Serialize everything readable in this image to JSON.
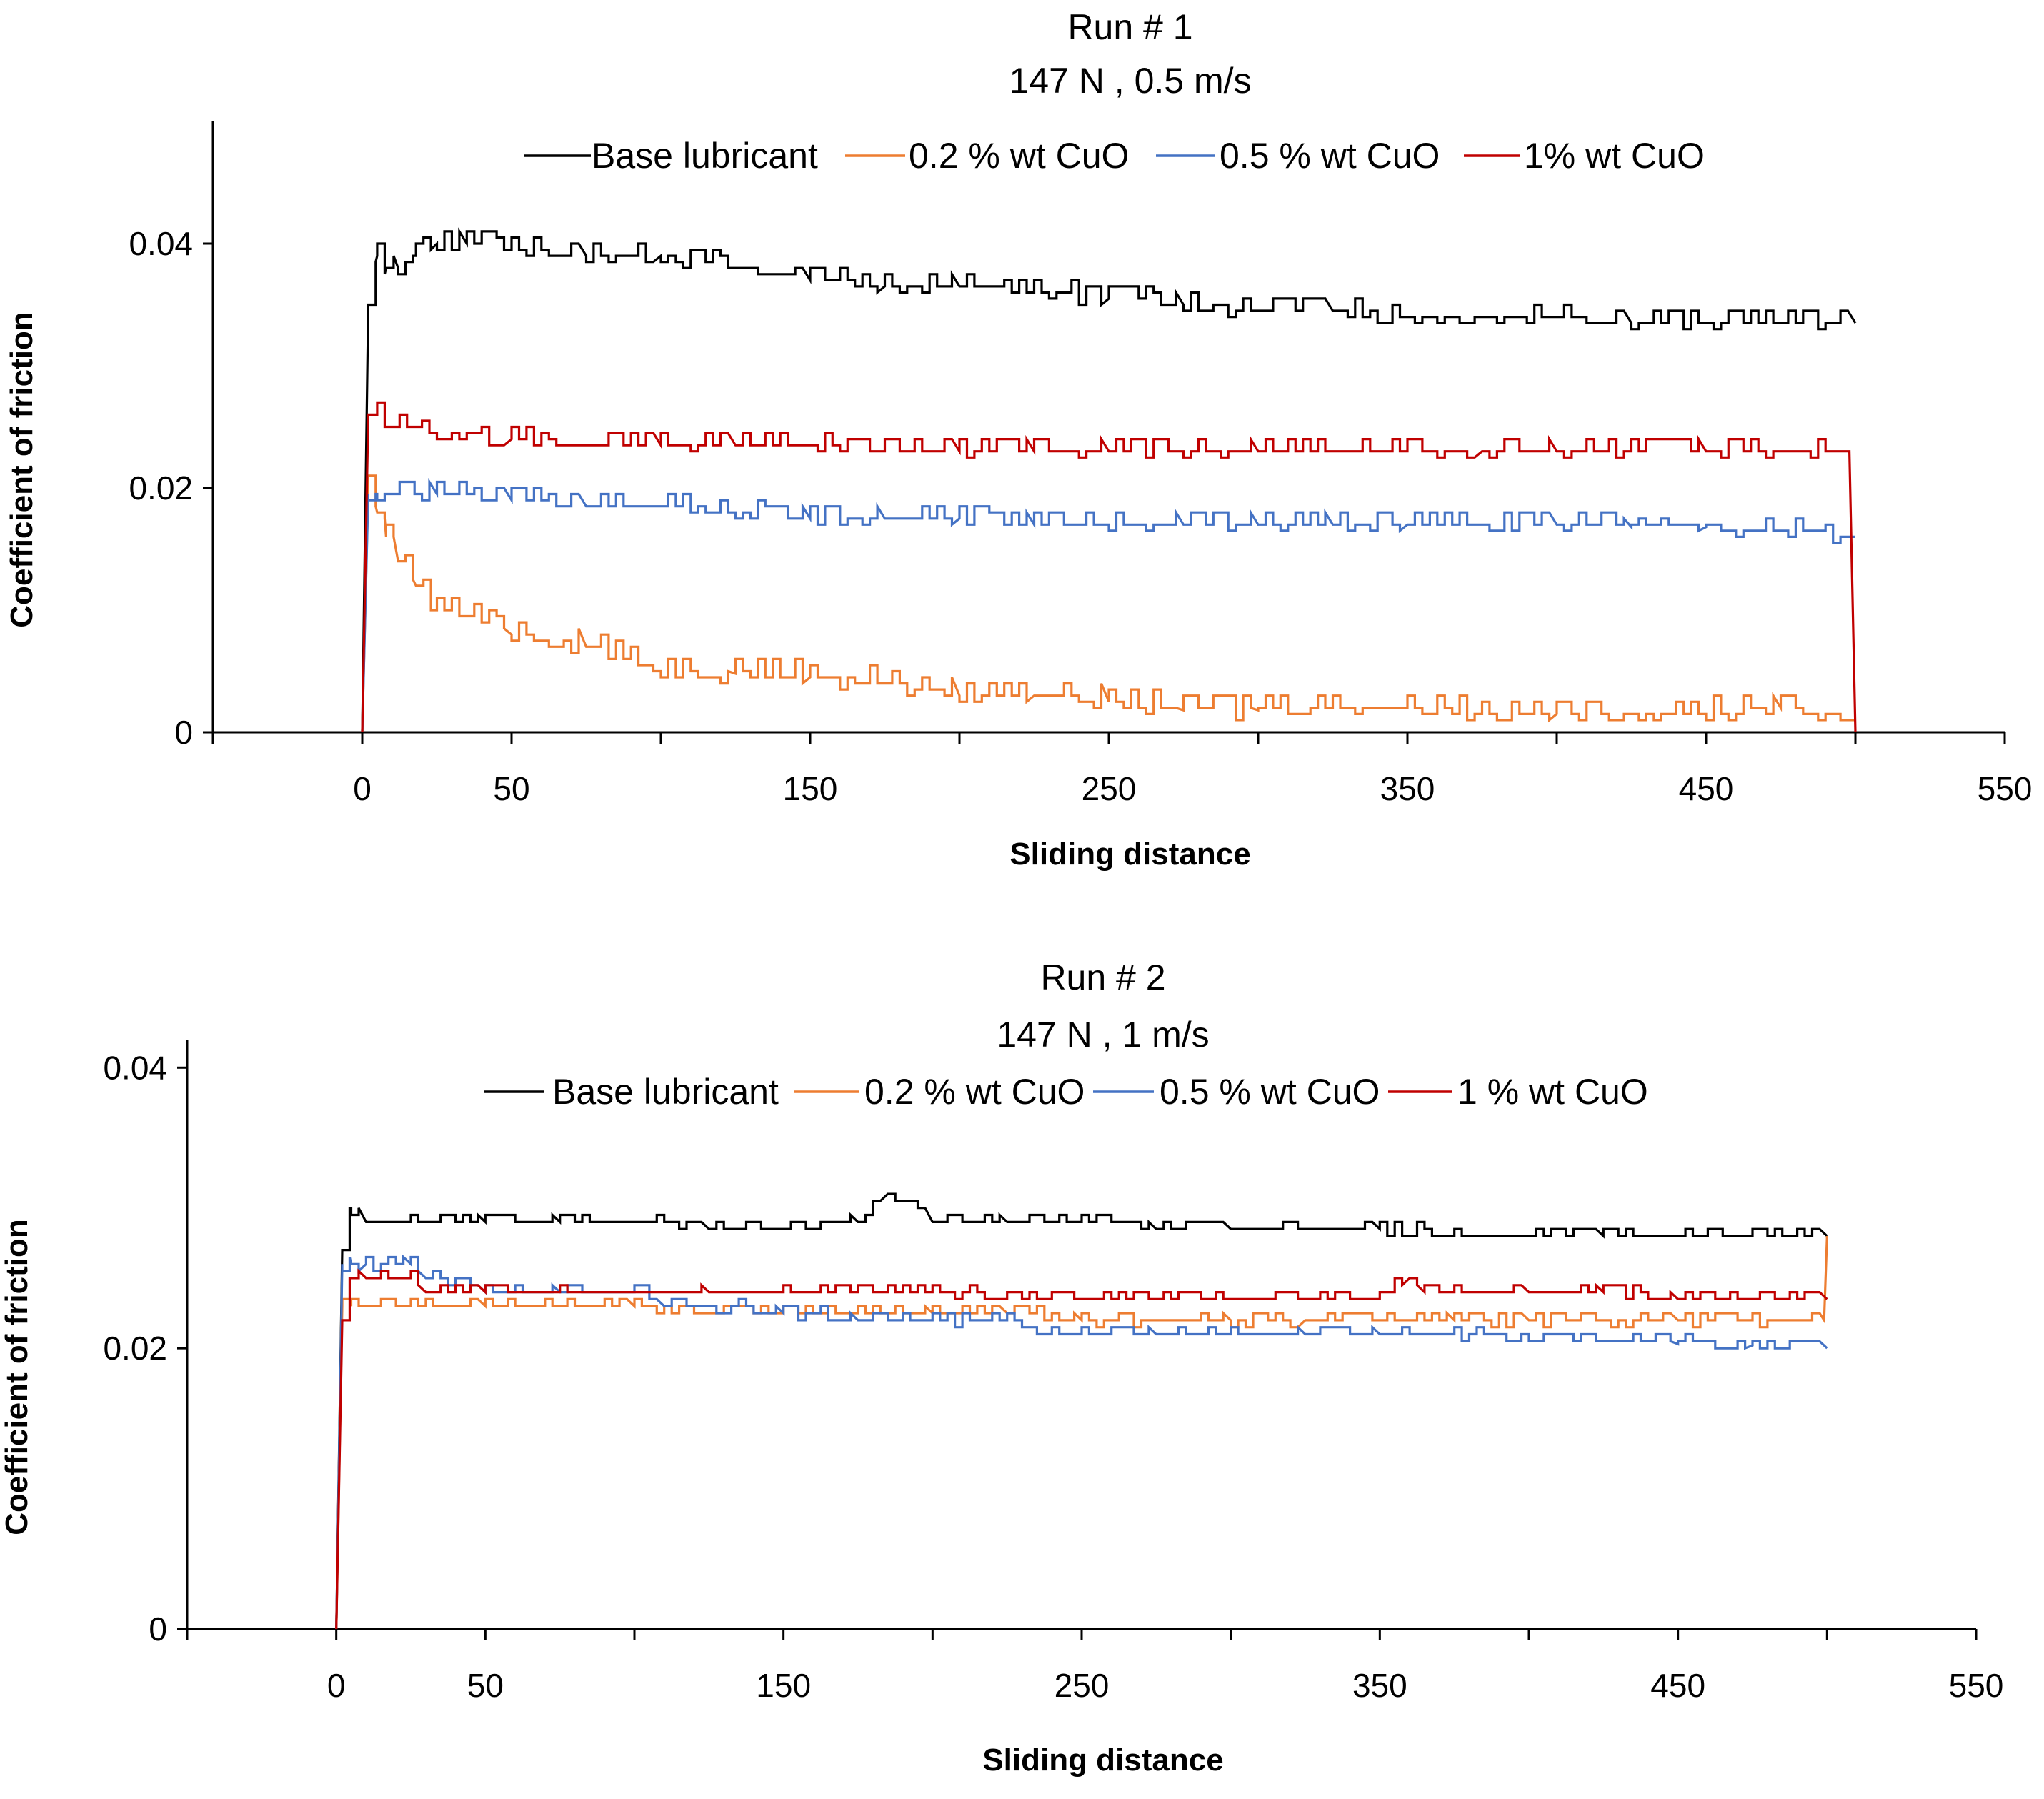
{
  "chart_data": [
    {
      "type": "line",
      "title": "Run # 1",
      "subtitle": "147 N , 0.5 m/s",
      "xlabel": "Sliding distance",
      "ylabel": "Coefficient of friction",
      "xlim": [
        -50,
        550
      ],
      "ylim": [
        0,
        0.05
      ],
      "xticks": [
        0,
        50,
        150,
        250,
        350,
        450,
        550
      ],
      "yticks": [
        0,
        0.02,
        0.04
      ],
      "ytick_labels": [
        "0",
        "0.02",
        "0.04"
      ],
      "grid": false,
      "legend_position": "top",
      "series": [
        {
          "name": "Base lubricant",
          "color": "#000000",
          "jitter": 0.001,
          "x": [
            0,
            2,
            5,
            8,
            12,
            18,
            25,
            35,
            50,
            75,
            100,
            125,
            150,
            175,
            200,
            225,
            250,
            275,
            300,
            325,
            350,
            375,
            400,
            425,
            450,
            475,
            500
          ],
          "y": [
            0,
            0.035,
            0.039,
            0.038,
            0.038,
            0.039,
            0.04,
            0.04,
            0.0395,
            0.039,
            0.039,
            0.038,
            0.037,
            0.0365,
            0.0365,
            0.036,
            0.0355,
            0.035,
            0.0345,
            0.0345,
            0.034,
            0.034,
            0.034,
            0.0335,
            0.0335,
            0.0335,
            0.0335
          ]
        },
        {
          "name": "0.2 % wt CuO",
          "color": "#ED7D31",
          "jitter": 0.0012,
          "x": [
            0,
            2,
            5,
            8,
            12,
            18,
            25,
            35,
            50,
            75,
            100,
            125,
            150,
            175,
            200,
            225,
            250,
            275,
            300,
            325,
            350,
            375,
            400,
            425,
            450,
            475,
            500
          ],
          "y": [
            0,
            0.02,
            0.018,
            0.016,
            0.014,
            0.012,
            0.01,
            0.0095,
            0.008,
            0.007,
            0.005,
            0.0048,
            0.0045,
            0.004,
            0.003,
            0.003,
            0.0025,
            0.0018,
            0.0018,
            0.002,
            0.002,
            0.0015,
            0.0015,
            0.0015,
            0.0015,
            0.002,
            0.001
          ]
        },
        {
          "name": "0.5 % wt CuO",
          "color": "#4472C4",
          "jitter": 0.0009,
          "x": [
            0,
            2,
            5,
            10,
            25,
            50,
            75,
            100,
            125,
            150,
            175,
            200,
            225,
            250,
            275,
            300,
            325,
            350,
            375,
            400,
            425,
            450,
            475,
            500
          ],
          "y": [
            0,
            0.0195,
            0.0195,
            0.0195,
            0.0195,
            0.019,
            0.0185,
            0.0185,
            0.018,
            0.0175,
            0.0175,
            0.0175,
            0.017,
            0.017,
            0.017,
            0.017,
            0.017,
            0.017,
            0.017,
            0.017,
            0.0168,
            0.0168,
            0.0165,
            0.016
          ]
        },
        {
          "name": "1% wt CuO",
          "color": "#C00000",
          "jitter": 0.0009,
          "x": [
            0,
            2,
            5,
            10,
            25,
            50,
            75,
            100,
            125,
            150,
            175,
            200,
            225,
            250,
            275,
            300,
            325,
            350,
            375,
            400,
            425,
            450,
            475,
            498,
            500
          ],
          "y": [
            0,
            0.026,
            0.026,
            0.025,
            0.0245,
            0.024,
            0.0235,
            0.0235,
            0.0235,
            0.0235,
            0.023,
            0.023,
            0.023,
            0.023,
            0.023,
            0.023,
            0.023,
            0.023,
            0.023,
            0.023,
            0.023,
            0.023,
            0.023,
            0.023,
            0
          ]
        }
      ]
    },
    {
      "type": "line",
      "title": "Run # 2",
      "subtitle": "147 N , 1 m/s",
      "xlabel": "Sliding distance",
      "ylabel": "Coefficient of friction",
      "xlim": [
        -50,
        550
      ],
      "ylim": [
        0,
        0.042
      ],
      "xticks": [
        0,
        50,
        150,
        250,
        350,
        450,
        550
      ],
      "yticks": [
        0,
        0.02,
        0.04
      ],
      "ytick_labels": [
        "0",
        "0.02",
        "0.04"
      ],
      "grid": false,
      "legend_position": "top",
      "series": [
        {
          "name": "Base lubricant",
          "color": "#000000",
          "jitter": 0.0005,
          "x": [
            0,
            2,
            5,
            10,
            25,
            50,
            75,
            100,
            125,
            150,
            175,
            185,
            200,
            225,
            250,
            275,
            300,
            325,
            350,
            375,
            400,
            425,
            450,
            475,
            500
          ],
          "y": [
            0,
            0.027,
            0.03,
            0.029,
            0.029,
            0.029,
            0.029,
            0.029,
            0.0285,
            0.0285,
            0.029,
            0.031,
            0.029,
            0.029,
            0.029,
            0.0285,
            0.0285,
            0.0285,
            0.0285,
            0.028,
            0.028,
            0.028,
            0.028,
            0.028,
            0.028
          ]
        },
        {
          "name": "0.2 % wt CuO",
          "color": "#ED7D31",
          "jitter": 0.0005,
          "x": [
            0,
            2,
            5,
            10,
            25,
            50,
            75,
            100,
            125,
            150,
            175,
            200,
            225,
            250,
            275,
            300,
            325,
            350,
            375,
            400,
            425,
            450,
            475,
            499,
            500
          ],
          "y": [
            0,
            0.023,
            0.023,
            0.023,
            0.023,
            0.023,
            0.023,
            0.023,
            0.0225,
            0.0225,
            0.0225,
            0.0225,
            0.0225,
            0.022,
            0.022,
            0.022,
            0.022,
            0.022,
            0.022,
            0.022,
            0.022,
            0.022,
            0.022,
            0.022,
            0.028
          ]
        },
        {
          "name": "0.5 % wt CuO",
          "color": "#4472C4",
          "jitter": 0.0005,
          "x": [
            0,
            2,
            5,
            10,
            25,
            30,
            50,
            75,
            100,
            110,
            125,
            150,
            175,
            200,
            225,
            245,
            275,
            300,
            325,
            350,
            375,
            405,
            425,
            450,
            475,
            500
          ],
          "y": [
            0,
            0.026,
            0.026,
            0.026,
            0.026,
            0.025,
            0.024,
            0.024,
            0.024,
            0.023,
            0.023,
            0.0225,
            0.022,
            0.022,
            0.022,
            0.021,
            0.021,
            0.021,
            0.021,
            0.021,
            0.021,
            0.0205,
            0.0205,
            0.0203,
            0.0202,
            0.02
          ]
        },
        {
          "name": "1 % wt CuO",
          "color": "#C00000",
          "jitter": 0.0005,
          "x": [
            0,
            2,
            5,
            10,
            25,
            30,
            50,
            75,
            100,
            125,
            150,
            175,
            200,
            225,
            250,
            275,
            300,
            325,
            350,
            360,
            365,
            375,
            400,
            425,
            450,
            475,
            500
          ],
          "y": [
            0,
            0.022,
            0.025,
            0.025,
            0.025,
            0.024,
            0.024,
            0.024,
            0.024,
            0.024,
            0.024,
            0.024,
            0.024,
            0.0235,
            0.0235,
            0.0235,
            0.0235,
            0.0235,
            0.0235,
            0.025,
            0.024,
            0.024,
            0.024,
            0.024,
            0.0235,
            0.0235,
            0.0235
          ]
        }
      ]
    }
  ]
}
